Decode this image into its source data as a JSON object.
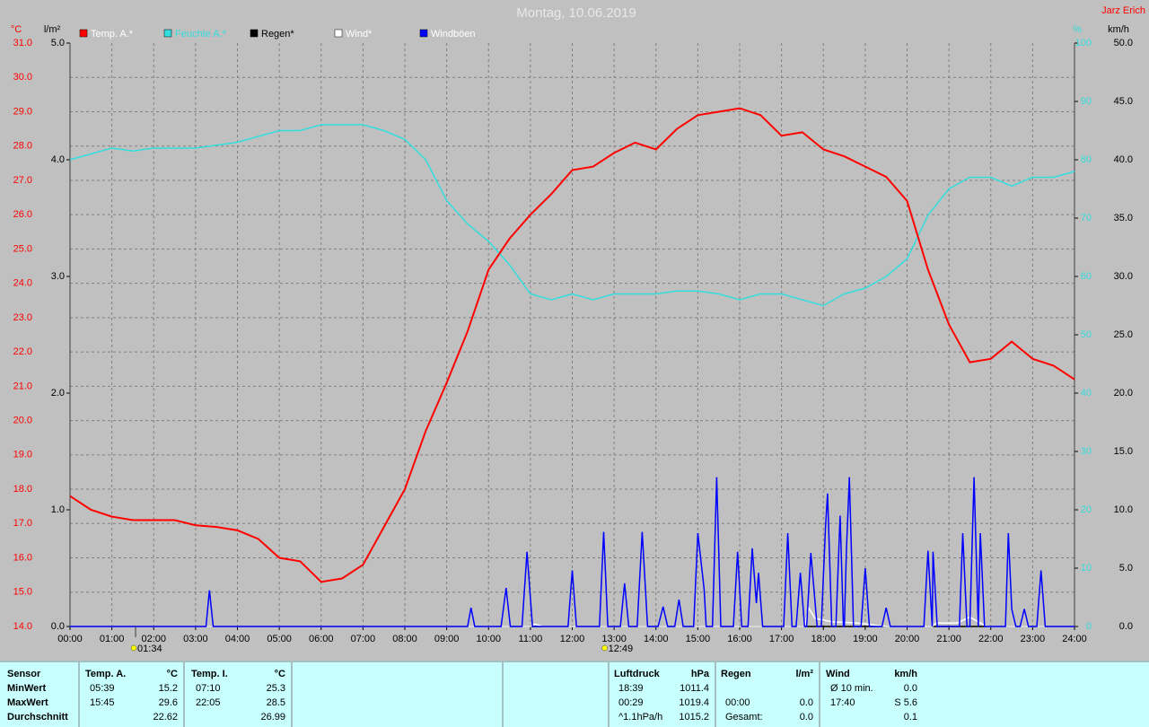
{
  "chart_data": {
    "type": "line",
    "title": "Montag, 10.06.2019",
    "author": "Jarz Erich",
    "y_unit": "°C",
    "y2_unit": "l/m²",
    "y3_unit": "%",
    "y4_unit": "km/h",
    "xlim": [
      0,
      24
    ],
    "xticks": [
      {
        "value": 0,
        "label": "00:00"
      },
      {
        "value": 1,
        "label": "01:00"
      },
      {
        "value": 2,
        "label": "02:00"
      },
      {
        "value": 3,
        "label": "03:00"
      },
      {
        "value": 4,
        "label": "04:00"
      },
      {
        "value": 5,
        "label": "05:00"
      },
      {
        "value": 6,
        "label": "06:00"
      },
      {
        "value": 7,
        "label": "07:00"
      },
      {
        "value": 8,
        "label": "08:00"
      },
      {
        "value": 9,
        "label": "09:00"
      },
      {
        "value": 10,
        "label": "10:00"
      },
      {
        "value": 11,
        "label": "11:00"
      },
      {
        "value": 12,
        "label": "12:00"
      },
      {
        "value": 13,
        "label": "13:00"
      },
      {
        "value": 14,
        "label": "14:00"
      },
      {
        "value": 15,
        "label": "15:00"
      },
      {
        "value": 16,
        "label": "16:00"
      },
      {
        "value": 17,
        "label": "17:00"
      },
      {
        "value": 18,
        "label": "18:00"
      },
      {
        "value": 19,
        "label": "19:00"
      },
      {
        "value": 20,
        "label": "20:00"
      },
      {
        "value": 21,
        "label": "21:00"
      },
      {
        "value": 22,
        "label": "22:00"
      },
      {
        "value": 23,
        "label": "23:00"
      },
      {
        "value": 24,
        "label": "24:00"
      }
    ],
    "ylim": [
      14,
      31
    ],
    "yticks": [
      {
        "value": 14,
        "label": "14.0"
      },
      {
        "value": 15,
        "label": "15.0"
      },
      {
        "value": 16,
        "label": "16.0"
      },
      {
        "value": 17,
        "label": "17.0"
      },
      {
        "value": 18,
        "label": "18.0"
      },
      {
        "value": 19,
        "label": "19.0"
      },
      {
        "value": 20,
        "label": "20.0"
      },
      {
        "value": 21,
        "label": "21.0"
      },
      {
        "value": 22,
        "label": "22.0"
      },
      {
        "value": 23,
        "label": "23.0"
      },
      {
        "value": 24,
        "label": "24.0"
      },
      {
        "value": 25,
        "label": "25.0"
      },
      {
        "value": 26,
        "label": "26.0"
      },
      {
        "value": 27,
        "label": "27.0"
      },
      {
        "value": 28,
        "label": "28.0"
      },
      {
        "value": 29,
        "label": "29.0"
      },
      {
        "value": 30,
        "label": "30.0"
      },
      {
        "value": 31,
        "label": "31.0"
      }
    ],
    "y2lim": [
      0,
      5
    ],
    "y2ticks": [
      {
        "value": 0,
        "label": "0.0"
      },
      {
        "value": 1,
        "label": "1.0"
      },
      {
        "value": 2,
        "label": "2.0"
      },
      {
        "value": 3,
        "label": "3.0"
      },
      {
        "value": 4,
        "label": "4.0"
      },
      {
        "value": 5,
        "label": "5.0"
      }
    ],
    "y3lim": [
      0,
      100
    ],
    "y3ticks": [
      0,
      10,
      20,
      30,
      40,
      50,
      60,
      70,
      80,
      90,
      100
    ],
    "y4lim": [
      0,
      50
    ],
    "y4ticks": [
      {
        "value": 0,
        "label": "0.0"
      },
      {
        "value": 5,
        "label": "5.0"
      },
      {
        "value": 10,
        "label": "10.0"
      },
      {
        "value": 15,
        "label": "15.0"
      },
      {
        "value": 20,
        "label": "20.0"
      },
      {
        "value": 25,
        "label": "25.0"
      },
      {
        "value": 30,
        "label": "30.0"
      },
      {
        "value": 35,
        "label": "35.0"
      },
      {
        "value": 40,
        "label": "40.0"
      },
      {
        "value": 45,
        "label": "45.0"
      },
      {
        "value": 50,
        "label": "50.0"
      }
    ],
    "grid": true,
    "series": [
      {
        "name": "Temp. A.*",
        "color": "#ff0000",
        "axis": "y",
        "x": [
          0,
          0.5,
          1,
          1.5,
          2,
          2.5,
          3,
          3.5,
          4,
          4.5,
          5,
          5.5,
          6,
          6.5,
          7,
          7.5,
          8,
          8.5,
          9,
          9.5,
          10,
          10.5,
          11,
          11.5,
          12,
          12.5,
          13,
          13.5,
          14,
          14.5,
          15,
          15.5,
          16,
          16.5,
          17,
          17.5,
          18,
          18.5,
          19,
          19.5,
          20,
          20.5,
          21,
          21.5,
          22,
          22.5,
          23,
          23.5,
          24
        ],
        "values": [
          17.8,
          17.4,
          17.2,
          17.1,
          17.1,
          17.1,
          16.95,
          16.9,
          16.8,
          16.55,
          16.0,
          15.9,
          15.3,
          15.4,
          15.8,
          16.9,
          18.0,
          19.7,
          21.1,
          22.6,
          24.4,
          25.3,
          26.0,
          26.6,
          27.3,
          27.4,
          27.8,
          28.1,
          27.9,
          28.5,
          28.9,
          29.0,
          29.1,
          28.9,
          28.3,
          28.4,
          27.9,
          27.7,
          27.4,
          27.1,
          26.4,
          24.4,
          22.8,
          21.7,
          21.8,
          22.3,
          21.8,
          21.6,
          21.2
        ]
      },
      {
        "name": "Feuchte A.*",
        "color": "#33dddd",
        "axis": "y3",
        "x": [
          0,
          0.5,
          1,
          1.5,
          2,
          2.5,
          3,
          3.5,
          4,
          4.5,
          5,
          5.5,
          6,
          6.5,
          7,
          7.5,
          8,
          8.5,
          9,
          9.5,
          10,
          10.5,
          11,
          11.5,
          12,
          12.5,
          13,
          13.5,
          14,
          14.5,
          15,
          15.5,
          16,
          16.5,
          17,
          17.5,
          18,
          18.5,
          19,
          19.5,
          20,
          20.5,
          21,
          21.5,
          22,
          22.5,
          23,
          23.5,
          24
        ],
        "values": [
          80,
          81,
          82,
          81.5,
          82,
          82,
          82,
          82.5,
          83,
          84,
          85,
          85,
          86,
          86,
          86,
          85,
          83.5,
          80,
          73,
          69,
          66,
          62,
          57,
          56,
          57,
          56,
          57,
          57,
          57,
          57.5,
          57.5,
          57,
          56,
          57,
          57,
          56,
          55,
          57,
          58,
          60,
          63,
          70.5,
          75,
          77,
          77,
          75.5,
          77,
          77,
          78
        ]
      },
      {
        "name": "Regen*",
        "color": "#000000",
        "axis": "y2",
        "x": [
          0,
          24
        ],
        "values": [
          0,
          0
        ]
      },
      {
        "name": "Wind*",
        "color": "#ffffff",
        "axis": "y4",
        "x": [
          0,
          11.0,
          11.1,
          11.3,
          17.55,
          17.65,
          17.8,
          18.2,
          18.8,
          19.5,
          20.6,
          20.7,
          21.2,
          21.5,
          21.7,
          21.9,
          24
        ],
        "values": [
          0,
          0,
          0.2,
          0,
          0,
          1.6,
          0.7,
          0.4,
          0.3,
          0,
          0,
          0.3,
          0.3,
          0.8,
          0.4,
          0,
          0
        ]
      },
      {
        "name": "Windböen",
        "color": "#0000ff",
        "axis": "y4",
        "x": [
          0,
          3.25,
          3.33,
          3.42,
          9.5,
          9.58,
          9.67,
          10.3,
          10.42,
          10.52,
          10.8,
          10.92,
          11.05,
          11.9,
          12.0,
          12.1,
          12.65,
          12.75,
          12.85,
          13.15,
          13.25,
          13.35,
          13.55,
          13.67,
          13.8,
          14.05,
          14.17,
          14.28,
          14.45,
          14.55,
          14.65,
          14.9,
          15.0,
          15.15,
          15.2,
          15.35,
          15.45,
          15.55,
          15.85,
          15.95,
          16.05,
          16.2,
          16.3,
          16.4,
          16.45,
          16.55,
          17.05,
          17.15,
          17.25,
          17.35,
          17.45,
          17.55,
          17.6,
          17.7,
          17.85,
          17.95,
          18.05,
          18.1,
          18.2,
          18.3,
          18.4,
          18.48,
          18.5,
          18.55,
          18.62,
          18.72,
          18.9,
          19.0,
          19.1,
          19.4,
          19.5,
          19.6,
          20.4,
          20.5,
          20.6,
          20.62,
          20.72,
          21.25,
          21.33,
          21.43,
          21.5,
          21.6,
          21.7,
          21.75,
          21.85,
          22.35,
          22.42,
          22.5,
          22.6,
          22.7,
          22.8,
          22.9,
          23.1,
          23.2,
          23.3,
          24
        ],
        "values": [
          0,
          0,
          3.1,
          0,
          0,
          1.6,
          0,
          0,
          3.3,
          0,
          0,
          6.4,
          0,
          0,
          4.8,
          0,
          0,
          8.1,
          0,
          0,
          3.7,
          0,
          0,
          8.1,
          0,
          0,
          1.7,
          0,
          0,
          2.3,
          0,
          0,
          8.0,
          3.2,
          0,
          0,
          12.8,
          0,
          0,
          6.4,
          0,
          0,
          6.7,
          2.0,
          4.6,
          0,
          0,
          8.0,
          0,
          0,
          4.6,
          0,
          0,
          6.3,
          0,
          0,
          8.5,
          11.4,
          0,
          0,
          9.5,
          0,
          0,
          6.5,
          12.8,
          0,
          0,
          5.0,
          0,
          0,
          1.6,
          0,
          0,
          6.5,
          0,
          6.4,
          0,
          0,
          8.0,
          0,
          0,
          12.8,
          0,
          8.0,
          0,
          0,
          8.0,
          1.5,
          0,
          0,
          1.5,
          0,
          0,
          4.8,
          0,
          0
        ]
      }
    ],
    "annotations": [
      {
        "x": 1.5667,
        "label": "01:34"
      },
      {
        "x": 12.8167,
        "label": "12:49"
      }
    ]
  },
  "table": {
    "labels": [
      "Sensor",
      "MinWert",
      "MaxWert",
      "Durchschnitt"
    ],
    "blocks": [
      {
        "title": "Temp. A.",
        "unit": "°C",
        "rows": [
          [
            "05:39",
            "15.2"
          ],
          [
            "15:45",
            "29.6"
          ],
          [
            "22.62"
          ]
        ]
      },
      {
        "title": "Temp. I.",
        "unit": "°C",
        "rows": [
          [
            "07:10",
            "25.3"
          ],
          [
            "22:05",
            "28.5"
          ],
          [
            "26.99"
          ]
        ]
      },
      {
        "title": "Luftdruck",
        "unit": "hPa",
        "rows": [
          [
            "18:39",
            "1011.4"
          ],
          [
            "00:29",
            "1019.4"
          ],
          [
            "^1.1hPa/h",
            "1015.2"
          ]
        ]
      },
      {
        "title": "Regen",
        "unit": "l/m²",
        "rows": [
          [],
          [
            "00:00",
            "0.0"
          ],
          [
            "Gesamt:",
            "0.0"
          ]
        ]
      },
      {
        "title": "Wind",
        "unit": "km/h",
        "rows": [
          [
            "Ø 10 min.",
            "0.0"
          ],
          [
            "17:40",
            "S 5.6"
          ],
          [
            "0.1"
          ]
        ]
      }
    ]
  }
}
